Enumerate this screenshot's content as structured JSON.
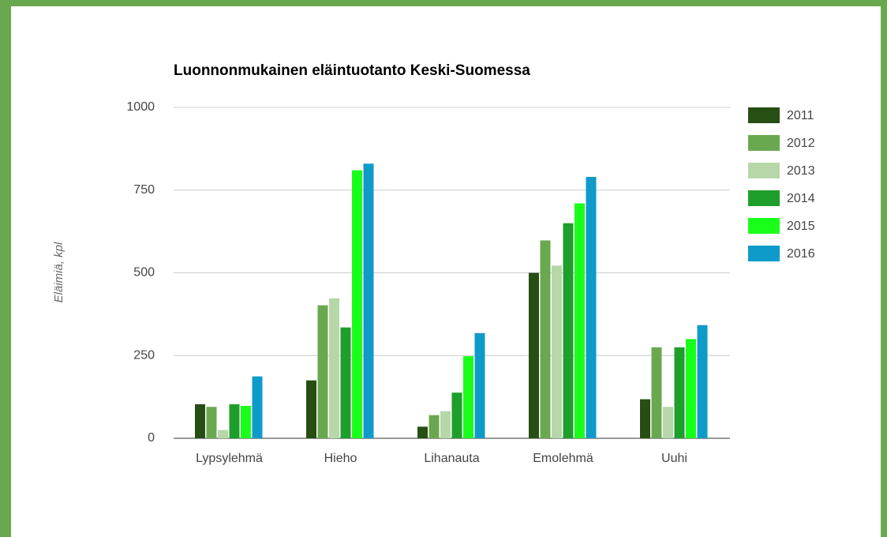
{
  "chart_data": {
    "type": "bar",
    "title": "Luonnonmukainen eläintuotanto Keski-Suomessa",
    "y_label": "Eläimiä, kpl",
    "categories": [
      "Lypsylehmä",
      "Hieho",
      "Lihanauta",
      "Emolehmä",
      "Uuhi"
    ],
    "series": [
      {
        "name": "2011",
        "color": "#274e13",
        "values": [
          103,
          175,
          35,
          500,
          118
        ]
      },
      {
        "name": "2012",
        "color": "#6aa84f",
        "values": [
          95,
          402,
          70,
          598,
          275
        ]
      },
      {
        "name": "2013",
        "color": "#b6d7a8",
        "values": [
          25,
          423,
          82,
          522,
          95
        ]
      },
      {
        "name": "2014",
        "color": "#1e9e2a",
        "values": [
          103,
          335,
          138,
          650,
          275
        ]
      },
      {
        "name": "2015",
        "color": "#1aff1a",
        "values": [
          98,
          810,
          248,
          710,
          300
        ]
      },
      {
        "name": "2016",
        "color": "#0e9bc9",
        "values": [
          187,
          830,
          318,
          790,
          342
        ]
      }
    ],
    "ylim": [
      0,
      1000
    ],
    "yticks": [
      0,
      250,
      500,
      750,
      1000
    ],
    "grid": true,
    "legend": "right"
  }
}
